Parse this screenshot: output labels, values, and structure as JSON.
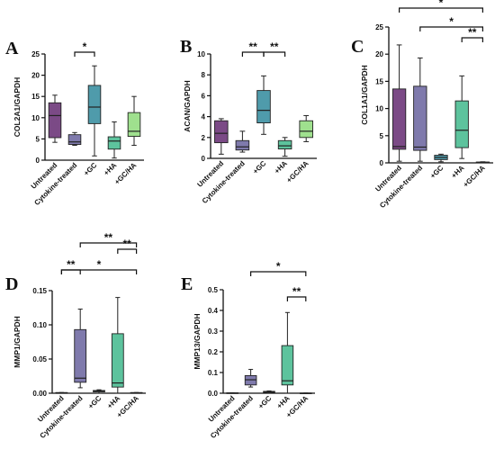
{
  "figure": {
    "colors": [
      "#7b4a86",
      "#7f7aac",
      "#4f9bab",
      "#5dc39d",
      "#9fe08e"
    ]
  },
  "chart_data": [
    {
      "type": "box",
      "panel": "A",
      "ylabel": "COL2A1/GAPDH",
      "ylim": [
        0,
        25
      ],
      "yticks": [
        "0",
        "5",
        "10",
        "15",
        "20",
        "25"
      ],
      "categories": [
        "Untreated",
        "Cytokine-treated",
        "+GC",
        "+HA",
        "+GC/HA"
      ],
      "boxes": [
        {
          "min": 4.2,
          "q1": 5.3,
          "median": 10.5,
          "q3": 13.5,
          "max": 15.3
        },
        {
          "min": 3.5,
          "q1": 3.7,
          "median": 4.3,
          "q3": 6.0,
          "max": 6.5
        },
        {
          "min": 1.0,
          "q1": 8.6,
          "median": 12.5,
          "q3": 17.6,
          "max": 22.2
        },
        {
          "min": 0.5,
          "q1": 2.6,
          "median": 4.5,
          "q3": 5.5,
          "max": 9.0
        },
        {
          "min": 3.5,
          "q1": 5.6,
          "median": 6.8,
          "q3": 11.2,
          "max": 15.0
        }
      ],
      "significance": [
        {
          "from": 1,
          "to": 2,
          "label": "*"
        }
      ]
    },
    {
      "type": "box",
      "panel": "B",
      "ylabel": "ACAN/GAPDH",
      "ylim": [
        0,
        10
      ],
      "yticks": [
        "0",
        "2",
        "4",
        "6",
        "8",
        "10"
      ],
      "categories": [
        "Untreated",
        "Cytokine-treated",
        "+GC",
        "+HA",
        "+GC/HA"
      ],
      "boxes": [
        {
          "min": 0.4,
          "q1": 1.5,
          "median": 2.4,
          "q3": 3.6,
          "max": 3.8
        },
        {
          "min": 0.6,
          "q1": 0.8,
          "median": 1.1,
          "q3": 1.7,
          "max": 2.6
        },
        {
          "min": 2.3,
          "q1": 3.4,
          "median": 4.6,
          "q3": 6.5,
          "max": 7.9
        },
        {
          "min": 0.2,
          "q1": 0.9,
          "median": 1.2,
          "q3": 1.7,
          "max": 2.0
        },
        {
          "min": 1.6,
          "q1": 2.0,
          "median": 2.6,
          "q3": 3.6,
          "max": 4.1
        }
      ],
      "significance": [
        {
          "from": 1,
          "to": 2,
          "label": "**"
        },
        {
          "from": 2,
          "to": 3,
          "label": "**"
        }
      ]
    },
    {
      "type": "box",
      "panel": "C",
      "ylabel": "COL1A1/GAPDH",
      "ylim": [
        0,
        25
      ],
      "yticks": [
        "0",
        "5",
        "10",
        "15",
        "20",
        "25"
      ],
      "categories": [
        "Untreated",
        "Cytokine-treated",
        "+GC",
        "+HA",
        "+GC/HA"
      ],
      "boxes": [
        {
          "min": 0.3,
          "q1": 2.5,
          "median": 3.0,
          "q3": 13.6,
          "max": 21.7
        },
        {
          "min": 0.3,
          "q1": 2.3,
          "median": 2.9,
          "q3": 14.1,
          "max": 19.3
        },
        {
          "min": 0.2,
          "q1": 0.6,
          "median": 1.0,
          "q3": 1.4,
          "max": 1.6
        },
        {
          "min": 0.8,
          "q1": 2.8,
          "median": 6.0,
          "q3": 11.4,
          "max": 16.0
        },
        {
          "min": 0.0,
          "q1": 0.05,
          "median": 0.1,
          "q3": 0.15,
          "max": 0.2
        }
      ],
      "significance": [
        {
          "from": 0,
          "to": 4,
          "label": "*"
        },
        {
          "from": 1,
          "to": 4,
          "label": "*"
        },
        {
          "from": 3,
          "to": 4,
          "label": "**"
        }
      ]
    },
    {
      "type": "box",
      "panel": "D",
      "ylabel": "MMP1/GAPDH",
      "ylim": [
        0,
        0.15
      ],
      "yticks": [
        "0.00",
        "0.05",
        "0.10",
        "0.15"
      ],
      "categories": [
        "Untreated",
        "Cytokine-treated",
        "+GC",
        "+HA",
        "+GC/HA"
      ],
      "boxes": [
        {
          "min": 0.0,
          "q1": 0.0,
          "median": 0.0,
          "q3": 0.001,
          "max": 0.001
        },
        {
          "min": 0.008,
          "q1": 0.016,
          "median": 0.022,
          "q3": 0.093,
          "max": 0.123
        },
        {
          "min": 0.0,
          "q1": 0.002,
          "median": 0.003,
          "q3": 0.004,
          "max": 0.005
        },
        {
          "min": 0.0,
          "q1": 0.009,
          "median": 0.015,
          "q3": 0.087,
          "max": 0.14
        },
        {
          "min": 0.0,
          "q1": 0.0,
          "median": 0.0,
          "q3": 0.001,
          "max": 0.001
        }
      ],
      "significance": [
        {
          "from": 0,
          "to": 1,
          "label": "**"
        },
        {
          "from": 0,
          "to": 4,
          "label": "*"
        },
        {
          "from": 1,
          "to": 4,
          "label": "**"
        },
        {
          "from": 3,
          "to": 4,
          "label": "**"
        }
      ]
    },
    {
      "type": "box",
      "panel": "E",
      "ylabel": "MMP13/GAPDH",
      "ylim": [
        0,
        0.5
      ],
      "yticks": [
        "0.0",
        "0.1",
        "0.2",
        "0.3",
        "0.4",
        "0.5"
      ],
      "categories": [
        "Untreated",
        "Cytokine-treated",
        "+GC",
        "+HA",
        "+GC/HA"
      ],
      "boxes": [
        {
          "min": 0.0,
          "q1": 0.0,
          "median": 0.0,
          "q3": 0.002,
          "max": 0.002
        },
        {
          "min": 0.03,
          "q1": 0.04,
          "median": 0.065,
          "q3": 0.085,
          "max": 0.115
        },
        {
          "min": 0.001,
          "q1": 0.004,
          "median": 0.006,
          "q3": 0.009,
          "max": 0.011
        },
        {
          "min": 0.0,
          "q1": 0.04,
          "median": 0.06,
          "q3": 0.23,
          "max": 0.39
        },
        {
          "min": 0.0,
          "q1": 0.0,
          "median": 0.0,
          "q3": 0.001,
          "max": 0.001
        }
      ],
      "significance": [
        {
          "from": 1,
          "to": 4,
          "label": "*"
        },
        {
          "from": 3,
          "to": 4,
          "label": "**"
        }
      ]
    }
  ]
}
